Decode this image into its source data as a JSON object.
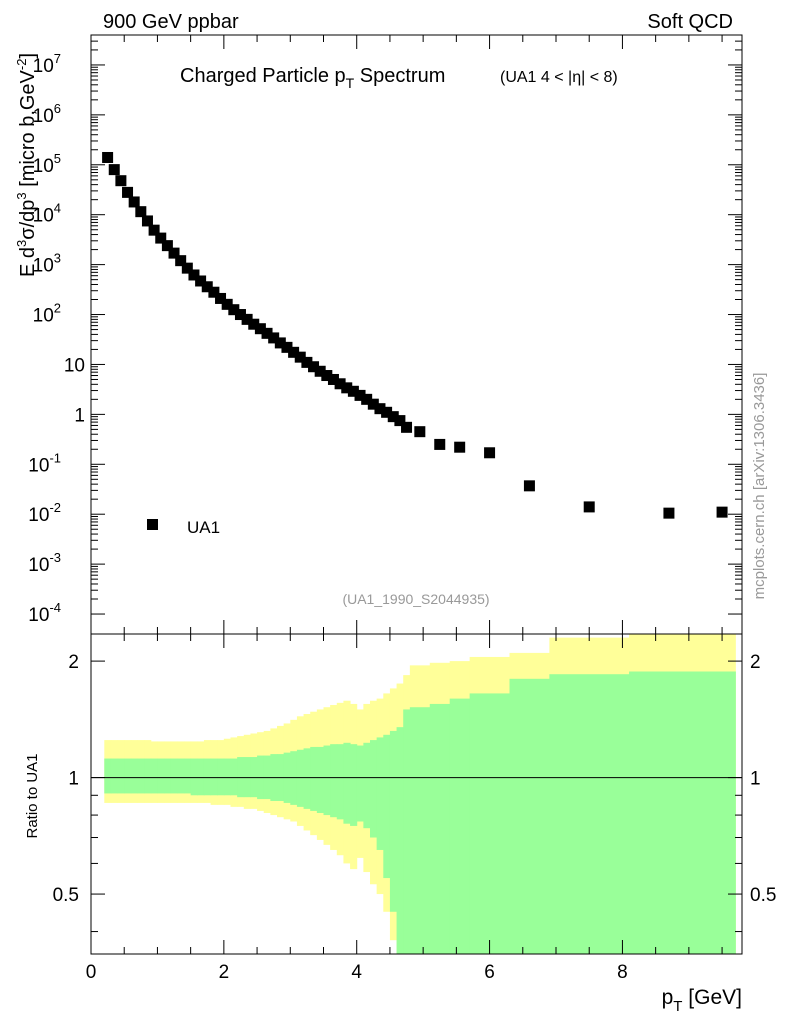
{
  "header": {
    "left": "900 GeV ppbar",
    "right": "Soft QCD"
  },
  "side_label": "mcplots.cern.ch [arXiv:1306.3436]",
  "analysis_tag": "(UA1_1990_S2044935)",
  "chart_data": [
    {
      "type": "scatter",
      "title_main": "Charged Particle p",
      "title_sub": "T",
      "title_word": " Spectrum",
      "title_range": "(UA1   4 < |η| < 8)",
      "ylabel_prefix": "E d",
      "ylabel_sup1": "3",
      "ylabel_mid1": "σ/dp",
      "ylabel_sup2": "3",
      "ylabel_mid2": " [micro b,GeV",
      "ylabel_sup3": "-2",
      "ylabel_end": "]",
      "yscale": "log",
      "xlim": [
        0,
        9.8
      ],
      "ylim_log10": [
        -4.4,
        7.6
      ],
      "y_ticks": [
        {
          "exp": -4,
          "base": "10",
          "sup": "-4"
        },
        {
          "exp": -3,
          "base": "10",
          "sup": "-3"
        },
        {
          "exp": -2,
          "base": "10",
          "sup": "-2"
        },
        {
          "exp": -1,
          "base": "10",
          "sup": "-1"
        },
        {
          "exp": 0,
          "base": "1",
          "sup": ""
        },
        {
          "exp": 1,
          "base": "10",
          "sup": ""
        },
        {
          "exp": 2,
          "base": "10",
          "sup": "2"
        },
        {
          "exp": 3,
          "base": "10",
          "sup": "3"
        },
        {
          "exp": 4,
          "base": "10",
          "sup": "4"
        },
        {
          "exp": 5,
          "base": "10",
          "sup": "5"
        },
        {
          "exp": 6,
          "base": "10",
          "sup": "6"
        },
        {
          "exp": 7,
          "base": "10",
          "sup": "7"
        }
      ],
      "legend": {
        "label": "UA1",
        "position": "bottom-left"
      },
      "series": [
        {
          "name": "UA1",
          "x": [
            0.25,
            0.35,
            0.45,
            0.55,
            0.65,
            0.75,
            0.85,
            0.95,
            1.05,
            1.15,
            1.25,
            1.35,
            1.45,
            1.55,
            1.65,
            1.75,
            1.85,
            1.95,
            2.05,
            2.15,
            2.25,
            2.35,
            2.45,
            2.55,
            2.65,
            2.75,
            2.85,
            2.95,
            3.05,
            3.15,
            3.25,
            3.35,
            3.45,
            3.55,
            3.65,
            3.75,
            3.85,
            3.95,
            4.05,
            4.15,
            4.25,
            4.35,
            4.45,
            4.55,
            4.65,
            4.75,
            4.95,
            5.25,
            5.55,
            6.0,
            6.6,
            7.5,
            8.7,
            9.5
          ],
          "y": [
            140000.0,
            80000.0,
            48000.0,
            28000.0,
            18000.0,
            11500.0,
            7500.0,
            4900.0,
            3400.0,
            2400.0,
            1700.0,
            1200.0,
            850,
            620,
            470,
            360,
            280,
            210,
            160,
            125,
            100,
            80,
            64,
            52,
            42,
            34,
            27,
            22,
            17.5,
            14,
            11,
            9.0,
            7.3,
            6.0,
            5.0,
            4.1,
            3.4,
            2.9,
            2.4,
            2.0,
            1.6,
            1.3,
            1.1,
            0.9,
            0.75,
            0.55,
            0.45,
            0.25,
            0.22,
            0.17,
            0.037,
            0.014,
            0.0105,
            0.011
          ]
        }
      ]
    },
    {
      "type": "area",
      "ylabel": "Ratio to UA1",
      "xlabel_main": "p",
      "xlabel_sub": "T",
      "xlabel_unit": " [GeV]",
      "xlim": [
        0,
        9.8
      ],
      "ylim": [
        0.35,
        2.35
      ],
      "y_ticks": [
        "0.5",
        "1",
        "2"
      ],
      "x_ticks": [
        "0",
        "2",
        "4",
        "6",
        "8"
      ],
      "reference_line": 1,
      "bin_edges": [
        0.2,
        0.3,
        0.4,
        0.5,
        0.6,
        0.7,
        0.8,
        0.9,
        1.0,
        1.1,
        1.2,
        1.3,
        1.4,
        1.5,
        1.6,
        1.7,
        1.8,
        1.9,
        2.0,
        2.1,
        2.2,
        2.3,
        2.4,
        2.5,
        2.6,
        2.7,
        2.8,
        2.9,
        3.0,
        3.1,
        3.2,
        3.3,
        3.4,
        3.5,
        3.6,
        3.7,
        3.8,
        3.9,
        4.0,
        4.1,
        4.2,
        4.3,
        4.4,
        4.5,
        4.6,
        4.7,
        4.8,
        5.1,
        5.4,
        5.7,
        6.3,
        6.9,
        8.1,
        9.3,
        9.7
      ],
      "bands": [
        {
          "name": "total uncertainty",
          "color": "#ffff99",
          "upper": [
            1.25,
            1.25,
            1.25,
            1.25,
            1.25,
            1.25,
            1.25,
            1.24,
            1.24,
            1.24,
            1.24,
            1.24,
            1.24,
            1.24,
            1.24,
            1.25,
            1.25,
            1.25,
            1.26,
            1.27,
            1.28,
            1.29,
            1.3,
            1.31,
            1.32,
            1.34,
            1.36,
            1.38,
            1.41,
            1.44,
            1.46,
            1.48,
            1.5,
            1.52,
            1.54,
            1.56,
            1.58,
            1.55,
            1.5,
            1.55,
            1.58,
            1.6,
            1.65,
            1.7,
            1.75,
            1.84,
            1.95,
            1.98,
            2.0,
            2.05,
            2.1,
            2.3,
            2.5,
            2.5
          ],
          "lower": [
            0.86,
            0.86,
            0.86,
            0.86,
            0.86,
            0.86,
            0.86,
            0.86,
            0.86,
            0.86,
            0.86,
            0.86,
            0.86,
            0.86,
            0.86,
            0.86,
            0.85,
            0.85,
            0.85,
            0.84,
            0.84,
            0.83,
            0.83,
            0.82,
            0.81,
            0.8,
            0.79,
            0.78,
            0.77,
            0.75,
            0.73,
            0.71,
            0.69,
            0.67,
            0.65,
            0.63,
            0.6,
            0.58,
            0.62,
            0.57,
            0.53,
            0.5,
            0.45,
            0.38,
            0.3,
            0.3,
            0.3,
            0.3,
            0.3,
            0.3,
            0.3,
            0.3,
            0.3,
            0.3
          ]
        },
        {
          "name": "statistical uncertainty",
          "color": "#99ff99",
          "upper": [
            1.12,
            1.12,
            1.12,
            1.12,
            1.12,
            1.12,
            1.12,
            1.12,
            1.12,
            1.12,
            1.12,
            1.12,
            1.12,
            1.12,
            1.12,
            1.12,
            1.12,
            1.12,
            1.12,
            1.12,
            1.13,
            1.13,
            1.13,
            1.14,
            1.14,
            1.15,
            1.15,
            1.16,
            1.17,
            1.18,
            1.19,
            1.2,
            1.2,
            1.21,
            1.22,
            1.22,
            1.23,
            1.22,
            1.21,
            1.23,
            1.25,
            1.27,
            1.29,
            1.32,
            1.35,
            1.5,
            1.52,
            1.55,
            1.6,
            1.65,
            1.8,
            1.85,
            1.88,
            1.88
          ],
          "lower": [
            0.91,
            0.91,
            0.91,
            0.91,
            0.91,
            0.91,
            0.91,
            0.91,
            0.91,
            0.91,
            0.91,
            0.91,
            0.91,
            0.9,
            0.9,
            0.9,
            0.9,
            0.9,
            0.9,
            0.9,
            0.89,
            0.89,
            0.89,
            0.88,
            0.88,
            0.87,
            0.87,
            0.86,
            0.85,
            0.84,
            0.83,
            0.82,
            0.81,
            0.8,
            0.79,
            0.78,
            0.76,
            0.75,
            0.77,
            0.74,
            0.7,
            0.65,
            0.55,
            0.45,
            0.3,
            0.3,
            0.3,
            0.3,
            0.3,
            0.3,
            0.3,
            0.3,
            0.3,
            0.3
          ]
        }
      ]
    }
  ]
}
